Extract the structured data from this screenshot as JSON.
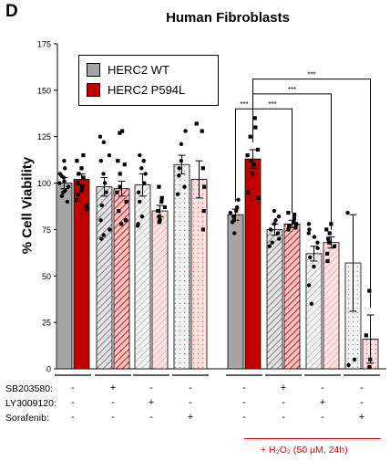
{
  "panel_letter": "D",
  "chart_data": {
    "type": "bar",
    "title": "Human Fibroblasts",
    "ylabel": "% Cell Viability",
    "ylim": [
      0,
      175
    ],
    "yticks": [
      0,
      25,
      50,
      75,
      100,
      125,
      150,
      175
    ],
    "grid": false,
    "legend_position": "top-left",
    "series": [
      {
        "name": "HERC2 WT",
        "color": "#a6a6a6"
      },
      {
        "name": "HERC2 P594L",
        "color": "#c00000"
      }
    ],
    "groups": [
      {
        "bars": [
          {
            "value": 100,
            "err": 3,
            "series": 0,
            "pattern": "solid",
            "points": [
              112,
              108,
              105,
              104,
              103,
              101,
              100,
              98,
              96,
              95,
              93,
              90
            ]
          },
          {
            "value": 102,
            "err": 3,
            "series": 1,
            "pattern": "solid",
            "points": [
              115,
              112,
              108,
              105,
              103,
              100,
              98,
              96,
              94,
              91,
              88,
              86
            ]
          }
        ]
      },
      {
        "bars": [
          {
            "value": 98,
            "err": 5,
            "series": 0,
            "pattern": "hatch",
            "points": [
              125,
              122,
              115,
              112,
              105,
              100,
              95,
              88,
              80,
              75,
              72,
              70
            ]
          },
          {
            "value": 97,
            "err": 4,
            "series": 1,
            "pattern": "hatch",
            "points": [
              128,
              127,
              112,
              110,
              105,
              98,
              95,
              90,
              85,
              80,
              78
            ]
          }
        ]
      },
      {
        "bars": [
          {
            "value": 99,
            "err": 6,
            "series": 0,
            "pattern": "hatch-light",
            "points": [
              115,
              112,
              108,
              105,
              100,
              95,
              90,
              82,
              78,
              77
            ]
          },
          {
            "value": 85,
            "err": 3,
            "series": 1,
            "pattern": "hatch-light",
            "points": [
              98,
              92,
              90,
              87,
              85,
              82,
              80,
              79
            ]
          }
        ]
      },
      {
        "bars": [
          {
            "value": 110,
            "err": 5,
            "series": 0,
            "pattern": "dots",
            "points": [
              128,
              121,
              112,
              108,
              104,
              98,
              94
            ]
          },
          {
            "value": 102,
            "err": 10,
            "series": 1,
            "pattern": "dots",
            "points": [
              132,
              128,
              108,
              98,
              85,
              75
            ]
          }
        ]
      },
      {
        "bars": [
          {
            "value": 83,
            "err": 3,
            "series": 0,
            "pattern": "solid",
            "points": [
              91,
              87,
              85,
              84,
              82,
              80,
              79,
              73
            ]
          },
          {
            "value": 113,
            "err": 5,
            "series": 1,
            "pattern": "solid",
            "points": [
              135,
              130,
              125,
              118,
              115,
              112,
              110,
              105,
              95,
              92
            ]
          }
        ]
      },
      {
        "bars": [
          {
            "value": 75,
            "err": 3,
            "series": 0,
            "pattern": "hatch",
            "points": [
              85,
              82,
              80,
              78,
              75,
              73,
              70,
              68,
              66
            ]
          },
          {
            "value": 78,
            "err": 2,
            "series": 1,
            "pattern": "hatch",
            "points": [
              84,
              83,
              81,
              79,
              78,
              77,
              76,
              75
            ]
          }
        ]
      },
      {
        "bars": [
          {
            "value": 62,
            "err": 4,
            "series": 0,
            "pattern": "hatch-light",
            "points": [
              78,
              75,
              73,
              71,
              68,
              65,
              60,
              55,
              45,
              35
            ]
          },
          {
            "value": 68,
            "err": 3,
            "series": 1,
            "pattern": "hatch-light",
            "points": [
              78,
              75,
              73,
              70,
              68,
              66,
              62,
              58
            ]
          }
        ]
      },
      {
        "bars": [
          {
            "value": 57,
            "err": 26,
            "series": 0,
            "pattern": "dots",
            "points": [
              84,
              5,
              2
            ]
          },
          {
            "value": 16,
            "err": 13,
            "series": 1,
            "pattern": "dots",
            "points": [
              42,
              18,
              5,
              1
            ]
          }
        ]
      }
    ],
    "significance": [
      {
        "from": [
          4,
          0
        ],
        "to": [
          4,
          1
        ],
        "label": "***",
        "y": 140
      },
      {
        "from": [
          4,
          1
        ],
        "to": [
          5,
          1
        ],
        "label": "***",
        "y": 140
      },
      {
        "from": [
          4,
          1
        ],
        "to": [
          6,
          1
        ],
        "label": "***",
        "y": 148
      },
      {
        "from": [
          4,
          1
        ],
        "to": [
          7,
          1
        ],
        "label": "***",
        "y": 156
      }
    ],
    "treatments": [
      {
        "label": "SB203580:",
        "values": [
          "-",
          "+",
          "-",
          "-",
          "-",
          "+",
          "-",
          "-"
        ]
      },
      {
        "label": "LY3009120:",
        "values": [
          "-",
          "-",
          "+",
          "-",
          "-",
          "-",
          "+",
          "-"
        ]
      },
      {
        "label": "Sorafenib:",
        "values": [
          "-",
          "-",
          "-",
          "+",
          "-",
          "-",
          "-",
          "+"
        ]
      }
    ],
    "footnote": "+ H₂O₂ (50 µM, 24h)"
  }
}
